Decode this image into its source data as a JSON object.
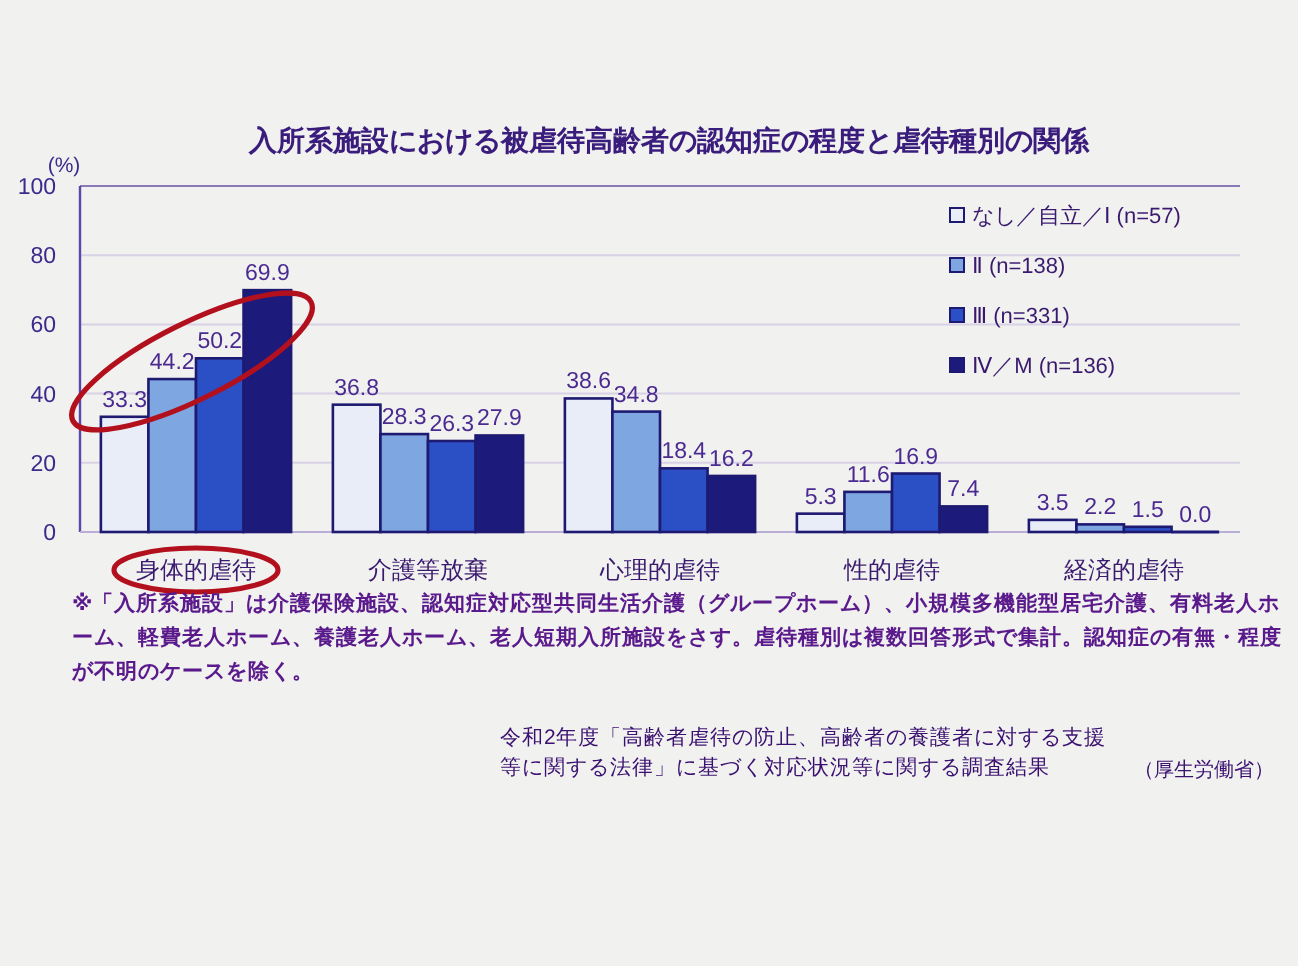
{
  "chart_data": {
    "type": "bar",
    "title": "入所系施設における被虐待高齢者の認知症の程度と虐待種別の関係",
    "ylabel": "(%)",
    "categories": [
      "身体的虐待",
      "介護等放棄",
      "心理的虐待",
      "性的虐待",
      "経済的虐待"
    ],
    "series": [
      {
        "name": "なし／自立／Ⅰ (n=57)",
        "color": "#e8edf8",
        "values": [
          33.3,
          36.8,
          38.6,
          5.3,
          3.5
        ],
        "value_labels": [
          "33.3",
          "36.8",
          "38.6",
          "5.3",
          "3.5"
        ]
      },
      {
        "name": "Ⅱ (n=138)",
        "color": "#7ea6e0",
        "values": [
          44.2,
          28.3,
          34.8,
          11.6,
          2.2
        ],
        "value_labels": [
          "44.2",
          "28.3",
          "34.8",
          "11.6",
          "2.2"
        ]
      },
      {
        "name": "Ⅲ (n=331)",
        "color": "#2b4fc4",
        "values": [
          50.2,
          26.3,
          18.4,
          16.9,
          1.5
        ],
        "value_labels": [
          "50.2",
          "26.3",
          "18.4",
          "16.9",
          "1.5"
        ]
      },
      {
        "name": "Ⅳ／M (n=136)",
        "color": "#1c1a7a",
        "values": [
          69.9,
          27.9,
          16.2,
          7.4,
          0.0
        ],
        "value_labels": [
          "69.9",
          "27.9",
          "16.2",
          "7.4",
          "0.0"
        ]
      }
    ],
    "ylim": [
      0,
      100
    ],
    "yticks": [
      0,
      20,
      40,
      60,
      80,
      100
    ],
    "grid": "y",
    "legend": "top right",
    "annotations": [
      "※「入所系施設」は介護保険施設、認知症対応型共同生活介護（グループホーム）、小規模多機能型居宅介護、有料老人ホーム、軽費老人ホーム、養護老人ホーム、老人短期入所施設をさす。虐待種別は複数回答形式で集計。認知症の有無・程度が不明のケースを除く。",
      "令和2年度「高齢者虐待の防止、高齢者の養護者に対する支援等に関する法律」に基づく対応状況等に関する調査結果",
      "（厚生労働省）"
    ]
  }
}
